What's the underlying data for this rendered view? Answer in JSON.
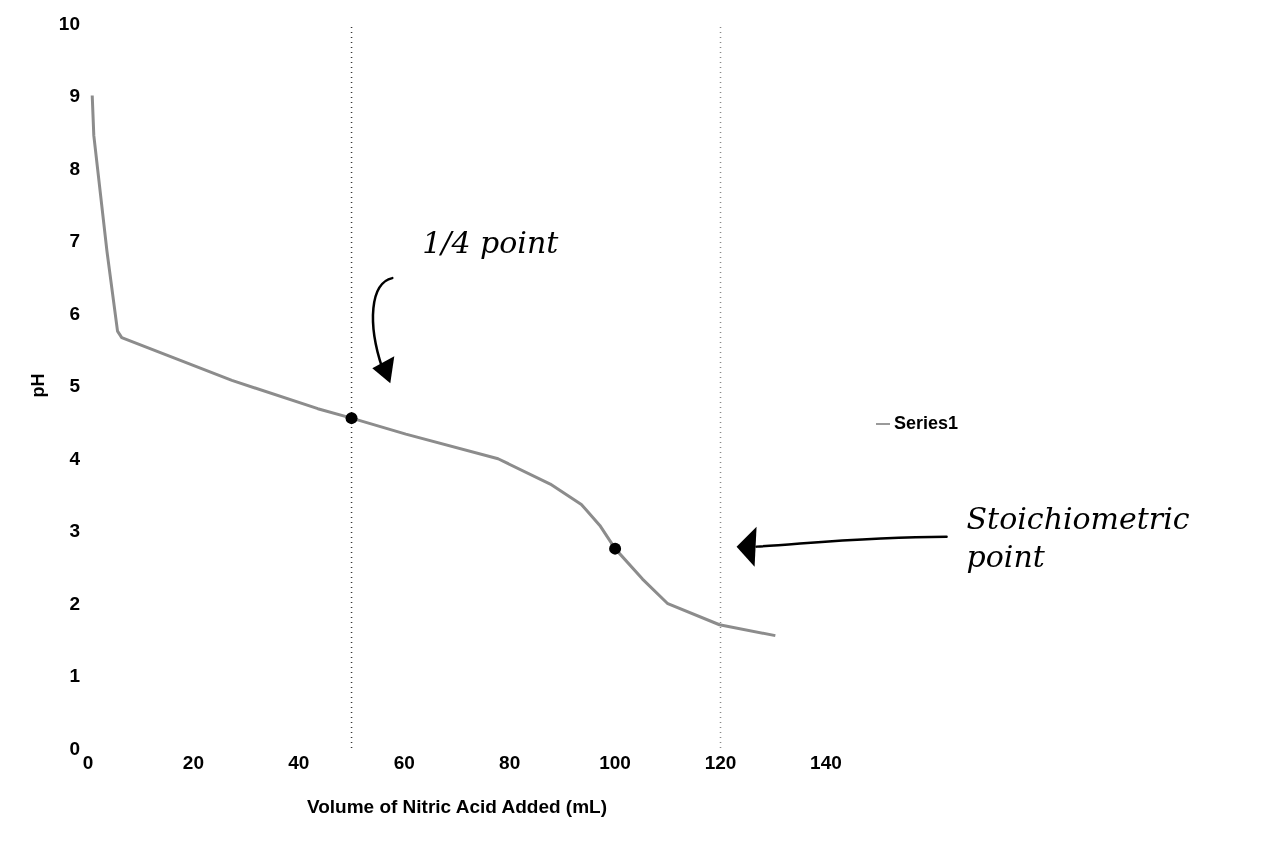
{
  "chart_data": {
    "type": "line",
    "xlabel": "Volume of Nitric Acid Added (mL)",
    "ylabel": "pH",
    "xlim": [
      0,
      140
    ],
    "xticks": [
      0,
      20,
      40,
      60,
      80,
      100,
      120,
      140
    ],
    "ylim": [
      0,
      10
    ],
    "yticks": [
      0,
      1,
      2,
      3,
      4,
      5,
      6,
      7,
      8,
      9,
      10
    ],
    "legend": "right",
    "marker": "none",
    "line_style": "solid",
    "series": [
      {
        "name": "Series1",
        "color": "#8c8c8c",
        "x": [
          0.8,
          1.1,
          3.6,
          5.6,
          6.4,
          16.3,
          27.3,
          43.6,
          50,
          60.3,
          77.8,
          87.7,
          93.6,
          97.1,
          100,
          105.2,
          110,
          119.8,
          130.4
        ],
        "values": [
          9.0,
          8.45,
          6.85,
          5.75,
          5.66,
          5.38,
          5.07,
          4.68,
          4.55,
          4.33,
          3.99,
          3.64,
          3.36,
          3.07,
          2.75,
          2.33,
          1.99,
          1.7,
          1.55
        ]
      },
      {
        "type": "scatter",
        "marker": "circle",
        "color": "#000000",
        "x": [
          50,
          100
        ],
        "values": [
          4.55,
          2.75
        ]
      }
    ],
    "ref_lines": [
      {
        "axis": "x",
        "value": 50,
        "color": "#333333",
        "line_style": "dotted"
      },
      {
        "axis": "x",
        "value": 120,
        "color": "#888888",
        "line_style": "dotted"
      }
    ],
    "annotations": [
      "1/4 point",
      "Stoichiometric point"
    ]
  }
}
